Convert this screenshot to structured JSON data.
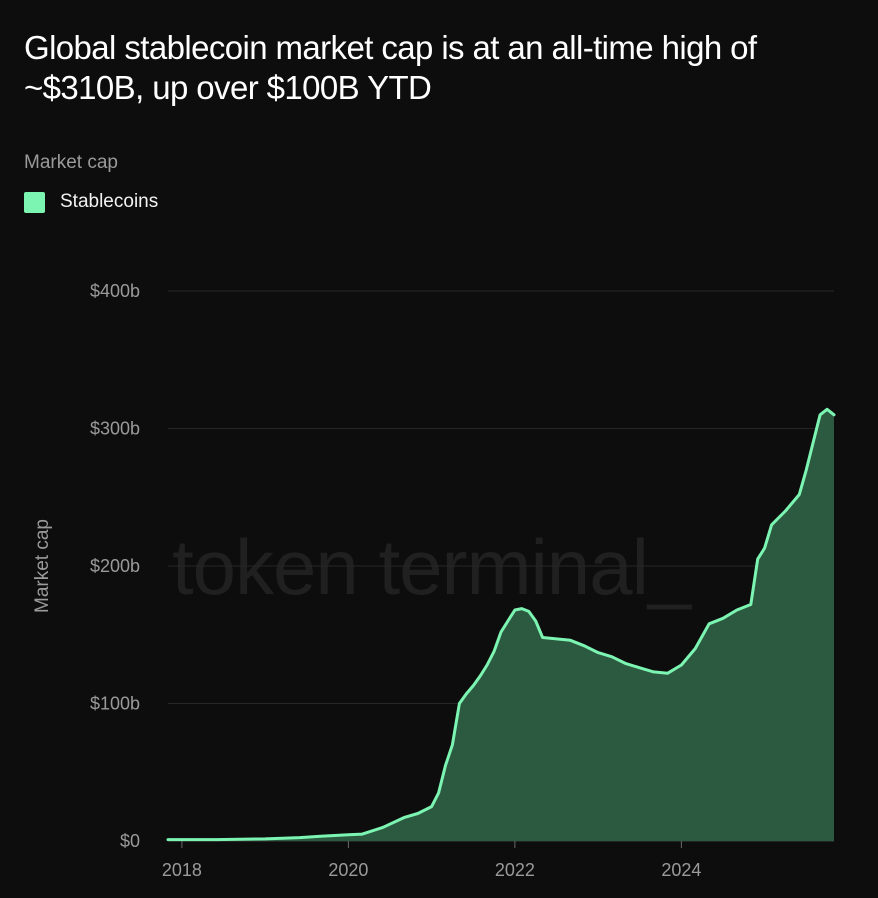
{
  "title": "Global stablecoin market cap is at an all-time high of ~$310B, up over $100B YTD",
  "subtitle": "Market cap",
  "watermark": "token terminal_",
  "legend": [
    {
      "label": "Stablecoins",
      "color": "#7cf5b3"
    }
  ],
  "colors": {
    "line": "#7cf5b3",
    "fill": "#2c5a40",
    "grid": "#262626",
    "axis": "#9a9a9a",
    "background": "#0d0d0d"
  },
  "chart_data": {
    "type": "area",
    "title": "Global stablecoin market cap is at an all-time high of ~$310B, up over $100B YTD",
    "ylabel": "Market cap",
    "xlabel": "",
    "y_unit": "USD billions",
    "ylim": [
      0,
      400
    ],
    "xlim": [
      "2017-11",
      "2025-11"
    ],
    "y_ticks": [
      0,
      100,
      200,
      300,
      400
    ],
    "y_tick_labels": [
      "$0",
      "$100b",
      "$200b",
      "$300b",
      "$400b"
    ],
    "x_ticks": [
      "2018-01",
      "2020-01",
      "2022-01",
      "2024-01"
    ],
    "x_tick_labels": [
      "2018",
      "2020",
      "2022",
      "2024"
    ],
    "grid": true,
    "legend_position": "top-left",
    "series": [
      {
        "name": "Stablecoins",
        "points": [
          [
            "2017-11",
            1
          ],
          [
            "2018-06",
            1
          ],
          [
            "2019-01",
            1.5
          ],
          [
            "2019-06",
            2.5
          ],
          [
            "2019-09",
            3.5
          ],
          [
            "2020-01",
            4.5
          ],
          [
            "2020-03",
            5
          ],
          [
            "2020-06",
            10
          ],
          [
            "2020-09",
            17
          ],
          [
            "2020-11",
            20
          ],
          [
            "2021-01",
            25
          ],
          [
            "2021-02",
            35
          ],
          [
            "2021-03",
            55
          ],
          [
            "2021-04",
            70
          ],
          [
            "2021-05",
            100
          ],
          [
            "2021-06",
            107
          ],
          [
            "2021-07",
            113
          ],
          [
            "2021-08",
            120
          ],
          [
            "2021-09",
            128
          ],
          [
            "2021-10",
            138
          ],
          [
            "2021-11",
            152
          ],
          [
            "2021-12",
            160
          ],
          [
            "2022-01",
            168
          ],
          [
            "2022-02",
            169
          ],
          [
            "2022-03",
            167
          ],
          [
            "2022-04",
            160
          ],
          [
            "2022-05",
            148
          ],
          [
            "2022-07",
            147
          ],
          [
            "2022-09",
            146
          ],
          [
            "2022-11",
            142
          ],
          [
            "2023-01",
            137
          ],
          [
            "2023-03",
            134
          ],
          [
            "2023-05",
            129
          ],
          [
            "2023-07",
            126
          ],
          [
            "2023-09",
            123
          ],
          [
            "2023-11",
            122
          ],
          [
            "2024-01",
            128
          ],
          [
            "2024-03",
            140
          ],
          [
            "2024-05",
            158
          ],
          [
            "2024-07",
            162
          ],
          [
            "2024-09",
            168
          ],
          [
            "2024-11",
            172
          ],
          [
            "2024-12",
            205
          ],
          [
            "2025-01",
            213
          ],
          [
            "2025-02",
            230
          ],
          [
            "2025-04",
            240
          ],
          [
            "2025-06",
            252
          ],
          [
            "2025-07",
            270
          ],
          [
            "2025-08",
            290
          ],
          [
            "2025-09",
            310
          ],
          [
            "2025-10",
            314
          ],
          [
            "2025-11",
            310
          ]
        ]
      }
    ]
  }
}
